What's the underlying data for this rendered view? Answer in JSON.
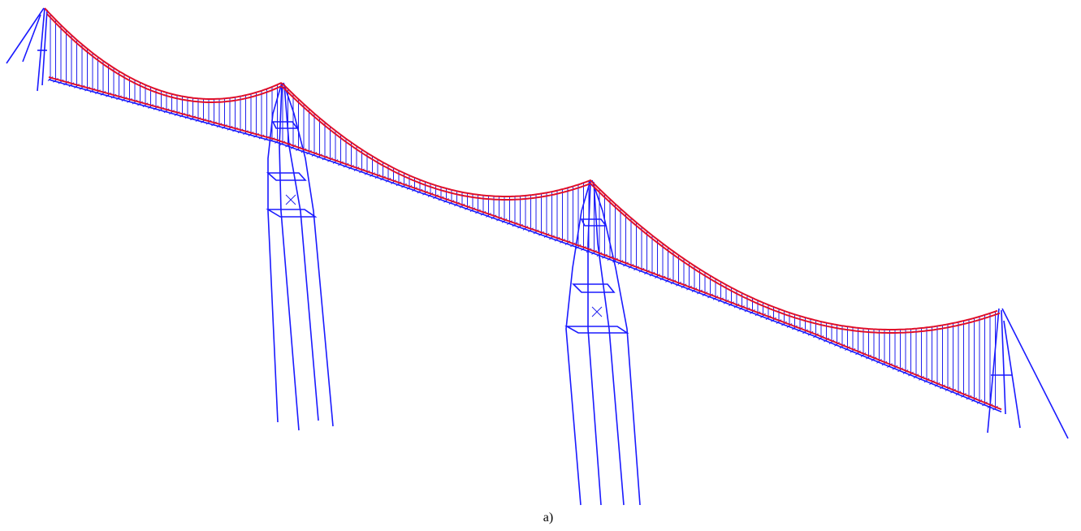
{
  "caption": "a)"
}
